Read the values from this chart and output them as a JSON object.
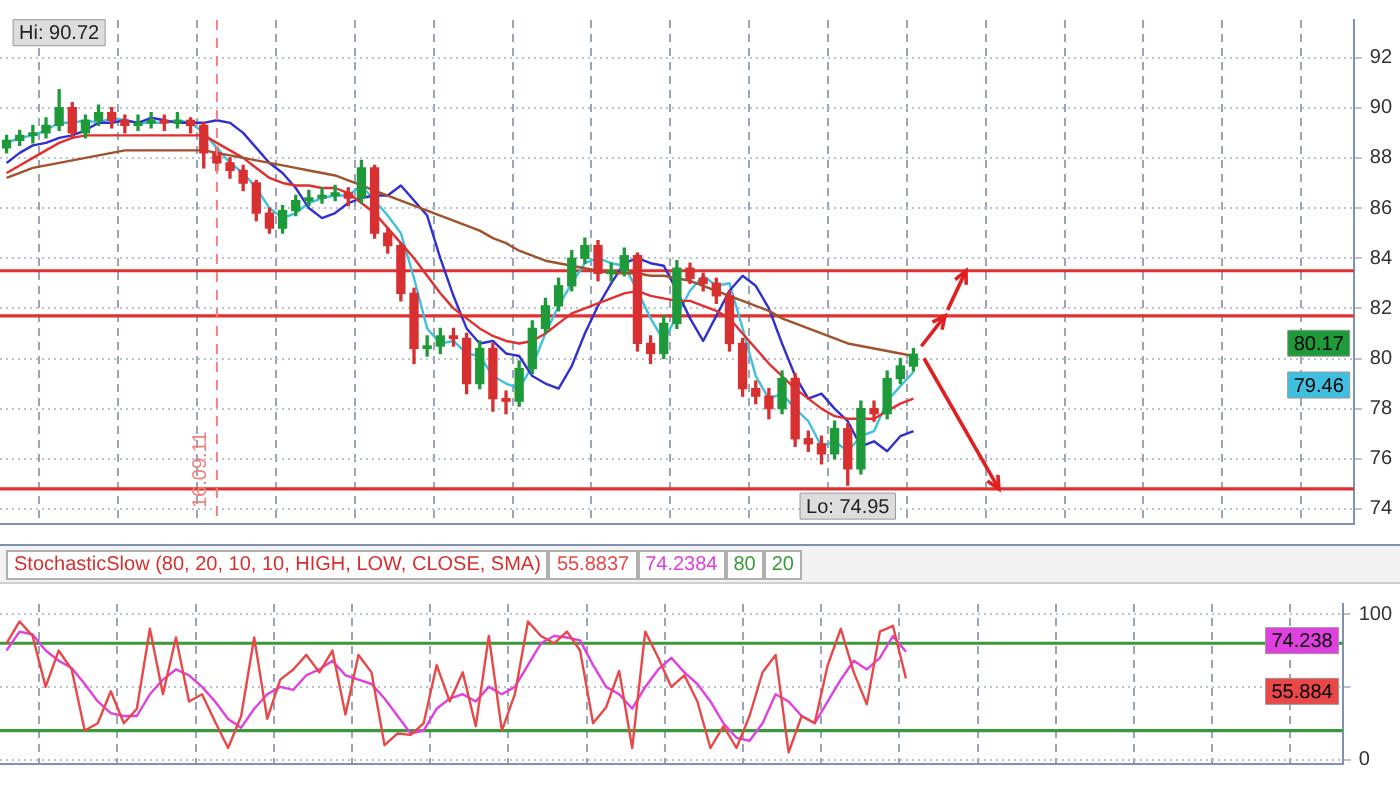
{
  "chart_data": [
    {
      "type": "candlestick",
      "categories": [
        null,
        null,
        null,
        null,
        null,
        null,
        null,
        null,
        null,
        null,
        null,
        null,
        null,
        null,
        null,
        null,
        null,
        null,
        null,
        null,
        null,
        null,
        null,
        null,
        null,
        null,
        null,
        null,
        null,
        null,
        null,
        null,
        null,
        null,
        null,
        null,
        null,
        null,
        null,
        null,
        null,
        null,
        null,
        null,
        null,
        null,
        null,
        null,
        null,
        null,
        null,
        null,
        null,
        null,
        null,
        null,
        null,
        null,
        null,
        null,
        null,
        null,
        null,
        null,
        null,
        null,
        null,
        null,
        null,
        null
      ],
      "ohlc": [
        [
          88.4,
          88.9,
          88.2,
          88.7
        ],
        [
          88.7,
          89.1,
          88.5,
          88.9
        ],
        [
          88.9,
          89.3,
          88.6,
          89.0
        ],
        [
          89.0,
          89.6,
          88.8,
          89.3
        ],
        [
          89.3,
          90.72,
          89.1,
          90.0
        ],
        [
          90.0,
          90.2,
          88.8,
          89.0
        ],
        [
          89.0,
          89.7,
          88.8,
          89.5
        ],
        [
          89.5,
          90.1,
          89.3,
          89.8
        ],
        [
          89.8,
          90.0,
          89.2,
          89.5
        ],
        [
          89.5,
          89.7,
          89.0,
          89.3
        ],
        [
          89.3,
          89.7,
          89.1,
          89.4
        ],
        [
          89.4,
          89.8,
          89.2,
          89.5
        ],
        [
          89.5,
          89.7,
          89.1,
          89.4
        ],
        [
          89.4,
          89.8,
          89.2,
          89.5
        ],
        [
          89.5,
          89.6,
          89.0,
          89.3
        ],
        [
          89.3,
          89.4,
          87.6,
          88.2
        ],
        [
          88.2,
          88.4,
          87.5,
          87.8
        ],
        [
          87.8,
          88.0,
          87.2,
          87.5
        ],
        [
          87.5,
          87.7,
          86.7,
          87.0
        ],
        [
          87.0,
          87.1,
          85.5,
          85.8
        ],
        [
          85.8,
          86.0,
          85.0,
          85.2
        ],
        [
          85.2,
          86.1,
          85.0,
          85.9
        ],
        [
          85.9,
          86.5,
          85.7,
          86.3
        ],
        [
          86.3,
          86.7,
          86.1,
          86.4
        ],
        [
          86.4,
          86.8,
          86.2,
          86.5
        ],
        [
          86.5,
          86.9,
          86.3,
          86.6
        ],
        [
          86.6,
          86.8,
          86.1,
          86.4
        ],
        [
          86.4,
          87.9,
          86.2,
          87.6
        ],
        [
          87.6,
          87.7,
          84.8,
          85.0
        ],
        [
          85.0,
          85.2,
          84.2,
          84.5
        ],
        [
          84.5,
          84.6,
          82.3,
          82.6
        ],
        [
          82.6,
          82.8,
          79.8,
          80.4
        ],
        [
          80.4,
          80.9,
          80.1,
          80.5
        ],
        [
          80.5,
          81.2,
          80.2,
          80.9
        ],
        [
          80.9,
          81.2,
          80.5,
          80.8
        ],
        [
          80.8,
          81.0,
          78.6,
          79.0
        ],
        [
          79.0,
          80.7,
          78.8,
          80.4
        ],
        [
          80.4,
          80.6,
          77.9,
          78.4
        ],
        [
          78.4,
          78.7,
          77.8,
          78.3
        ],
        [
          78.3,
          79.9,
          78.1,
          79.6
        ],
        [
          79.6,
          81.5,
          79.4,
          81.2
        ],
        [
          81.2,
          82.4,
          81.0,
          82.1
        ],
        [
          82.1,
          83.2,
          81.9,
          82.9
        ],
        [
          82.9,
          84.3,
          82.7,
          84.0
        ],
        [
          84.0,
          84.8,
          83.8,
          84.5
        ],
        [
          84.5,
          84.7,
          83.1,
          83.4
        ],
        [
          83.4,
          83.8,
          83.1,
          83.5
        ],
        [
          83.5,
          84.4,
          83.3,
          84.1
        ],
        [
          84.1,
          84.2,
          80.3,
          80.6
        ],
        [
          80.6,
          80.9,
          79.8,
          80.2
        ],
        [
          80.2,
          81.7,
          80.0,
          81.4
        ],
        [
          81.4,
          83.9,
          81.2,
          83.6
        ],
        [
          83.6,
          83.8,
          83.0,
          83.2
        ],
        [
          83.2,
          83.4,
          82.7,
          83.0
        ],
        [
          83.0,
          83.2,
          82.2,
          82.5
        ],
        [
          82.5,
          82.7,
          80.3,
          80.6
        ],
        [
          80.6,
          80.8,
          78.5,
          78.8
        ],
        [
          78.8,
          79.1,
          78.2,
          78.5
        ],
        [
          78.5,
          78.8,
          77.6,
          78.0
        ],
        [
          78.0,
          79.5,
          77.8,
          79.2
        ],
        [
          79.2,
          79.4,
          76.5,
          76.8
        ],
        [
          76.8,
          77.1,
          76.3,
          76.6
        ],
        [
          76.6,
          76.9,
          75.8,
          76.2
        ],
        [
          76.2,
          77.5,
          76.0,
          77.2
        ],
        [
          77.2,
          77.4,
          74.95,
          75.6
        ],
        [
          75.6,
          78.3,
          75.4,
          78.0
        ],
        [
          78.0,
          78.3,
          77.5,
          77.8
        ],
        [
          77.8,
          79.5,
          77.6,
          79.2
        ],
        [
          79.2,
          80.0,
          79.0,
          79.7
        ],
        [
          79.7,
          80.4,
          79.5,
          80.17
        ]
      ],
      "series": [
        {
          "type": "line",
          "color": "#a0522d",
          "values": [
            87.2,
            87.4,
            87.6,
            87.7,
            87.8,
            87.9,
            88.0,
            88.1,
            88.2,
            88.3,
            88.3,
            88.3,
            88.3,
            88.3,
            88.3,
            88.3,
            88.2,
            88.1,
            88.0,
            87.9,
            87.8,
            87.7,
            87.6,
            87.5,
            87.4,
            87.3,
            87.1,
            86.9,
            86.7,
            86.5,
            86.3,
            86.1,
            85.9,
            85.7,
            85.5,
            85.3,
            85.1,
            84.8,
            84.6,
            84.3,
            84.1,
            83.9,
            83.8,
            83.7,
            83.6,
            83.5,
            83.4,
            83.4,
            83.4,
            83.3,
            83.3,
            83.2,
            83.1,
            82.9,
            82.7,
            82.5,
            82.3,
            82.1,
            81.9,
            81.6,
            81.4,
            81.2,
            81.0,
            80.8,
            80.6,
            80.5,
            80.4,
            80.3,
            80.2,
            80.1
          ]
        },
        {
          "type": "line",
          "color": "#e03030",
          "values": [
            87.4,
            87.7,
            88.0,
            88.3,
            88.6,
            88.8,
            88.9,
            88.9,
            88.9,
            88.9,
            88.9,
            88.9,
            88.9,
            88.9,
            88.9,
            88.9,
            88.6,
            88.3,
            88.0,
            87.6,
            87.2,
            87.0,
            86.9,
            86.9,
            86.8,
            86.8,
            86.6,
            86.2,
            85.8,
            85.2,
            84.6,
            84.0,
            83.3,
            82.6,
            82.0,
            81.6,
            81.2,
            80.9,
            80.7,
            80.6,
            80.7,
            81.0,
            81.4,
            81.8,
            82.0,
            82.2,
            82.4,
            82.6,
            82.7,
            82.5,
            82.4,
            82.3,
            82.3,
            82.1,
            81.9,
            81.6,
            81.0,
            80.4,
            79.8,
            79.3,
            78.8,
            78.4,
            78.0,
            77.7,
            77.6,
            77.6,
            77.6,
            77.9,
            78.2,
            78.4
          ]
        },
        {
          "type": "line",
          "color": "#3030d0",
          "values": [
            87.8,
            88.2,
            88.5,
            88.6,
            88.8,
            88.9,
            89.1,
            89.4,
            89.4,
            89.5,
            89.4,
            89.6,
            89.5,
            89.4,
            89.4,
            89.4,
            89.5,
            89.4,
            89.0,
            88.4,
            87.8,
            87.4,
            86.8,
            86.0,
            85.6,
            85.8,
            86.2,
            86.4,
            86.5,
            86.5,
            86.9,
            86.3,
            85.7,
            84.0,
            82.5,
            81.2,
            80.6,
            80.7,
            80.2,
            80.1,
            79.3,
            79.0,
            78.8,
            79.7,
            81.0,
            82.1,
            83.0,
            83.8,
            84.0,
            83.8,
            83.7,
            82.7,
            81.6,
            80.7,
            81.7,
            82.7,
            83.3,
            82.9,
            82.0,
            80.6,
            79.3,
            78.4,
            78.6,
            78.0,
            77.5,
            76.5,
            76.7,
            76.3,
            76.9,
            77.1
          ]
        },
        {
          "type": "line",
          "color": "#40c0e0",
          "values": [
            88.6,
            88.8,
            88.9,
            89.1,
            89.4,
            89.4,
            89.5,
            89.4,
            89.6,
            89.5,
            89.4,
            89.4,
            89.4,
            89.5,
            89.4,
            89.0,
            88.4,
            87.8,
            87.4,
            86.8,
            86.0,
            85.6,
            85.8,
            86.2,
            86.4,
            86.5,
            86.5,
            86.9,
            86.3,
            85.7,
            85.0,
            83.2,
            81.2,
            80.6,
            80.7,
            80.2,
            80.1,
            79.3,
            79.0,
            78.8,
            79.7,
            81.0,
            82.1,
            83.0,
            83.8,
            84.0,
            83.8,
            83.7,
            82.7,
            81.6,
            80.7,
            81.7,
            82.7,
            83.3,
            82.9,
            83.0,
            81.2,
            79.3,
            78.4,
            78.6,
            78.0,
            77.5,
            76.5,
            76.7,
            76.3,
            76.9,
            77.1,
            78.3,
            78.9,
            79.46
          ]
        }
      ],
      "ylim": [
        73.4,
        93.5
      ],
      "yticks": [
        74,
        76,
        78,
        80,
        82,
        84,
        86,
        88,
        90,
        92
      ],
      "grid": true,
      "tick_labels": "y",
      "ref_lines": [
        {
          "axis": "y",
          "value": 83.5,
          "color": "#e03030"
        },
        {
          "axis": "y",
          "value": 81.7,
          "color": "#e03030"
        },
        {
          "axis": "y",
          "value": 74.8,
          "color": "#e03030"
        }
      ],
      "annotations": [
        "16.09.11",
        {
          "text": "Hi: 90.72",
          "y": 90.72
        },
        {
          "text": "Lo: 74.95",
          "y": 74.95
        },
        "80.17",
        "79.46"
      ]
    },
    {
      "type": "line",
      "title": "StochasticSlow (80, 20, 10, 10, HIGH, LOW, CLOSE, SMA)",
      "legend": "top",
      "categories": [
        null,
        null,
        null,
        null,
        null,
        null,
        null,
        null,
        null,
        null,
        null,
        null,
        null,
        null,
        null,
        null,
        null,
        null,
        null,
        null,
        null,
        null,
        null,
        null,
        null,
        null,
        null,
        null,
        null,
        null,
        null,
        null,
        null,
        null,
        null,
        null,
        null,
        null,
        null,
        null,
        null,
        null,
        null,
        null,
        null,
        null,
        null,
        null,
        null,
        null,
        null,
        null,
        null,
        null,
        null,
        null,
        null,
        null,
        null,
        null,
        null,
        null,
        null,
        null,
        null,
        null,
        null,
        null,
        null,
        null
      ],
      "series": [
        {
          "name": "55.8837",
          "color": "#e84848",
          "values": [
            80,
            95,
            85,
            50,
            75,
            62,
            20,
            25,
            47,
            25,
            35,
            90,
            45,
            84,
            40,
            45,
            26,
            8,
            30,
            84,
            28,
            55,
            62,
            72,
            60,
            75,
            31,
            72,
            60,
            10,
            18,
            17,
            25,
            65,
            40,
            60,
            23,
            85,
            20,
            45,
            95,
            85,
            80,
            88,
            75,
            25,
            36,
            61,
            8,
            88,
            70,
            50,
            58,
            40,
            8,
            23,
            8,
            30,
            60,
            72,
            5,
            30,
            25,
            65,
            90,
            60,
            38,
            88,
            92,
            55.8837
          ]
        },
        {
          "name": "74.2384",
          "color": "#e040e0",
          "values": [
            75,
            88,
            86,
            75,
            68,
            63,
            52,
            40,
            32,
            30,
            30,
            45,
            55,
            62,
            58,
            50,
            40,
            28,
            22,
            35,
            45,
            50,
            48,
            58,
            62,
            68,
            58,
            55,
            52,
            42,
            30,
            18,
            20,
            35,
            42,
            45,
            40,
            50,
            45,
            50,
            65,
            80,
            85,
            84,
            82,
            65,
            50,
            45,
            35,
            50,
            62,
            70,
            60,
            52,
            40,
            25,
            15,
            13,
            25,
            45,
            40,
            30,
            25,
            40,
            55,
            68,
            62,
            70,
            85,
            74.2384
          ]
        }
      ],
      "ylim": [
        -3,
        107
      ],
      "yticks": [
        0,
        {
          "value": 50,
          "label": null
        },
        100
      ],
      "grid": true,
      "tick_labels": "y",
      "ref_lines": [
        {
          "axis": "y",
          "value": 80,
          "label": "80",
          "color": "#3a9a3a"
        },
        {
          "axis": "y",
          "value": 20,
          "label": "20",
          "color": "#3a9a3a"
        }
      ],
      "annotations": [
        "74.238",
        "55.884"
      ]
    }
  ]
}
